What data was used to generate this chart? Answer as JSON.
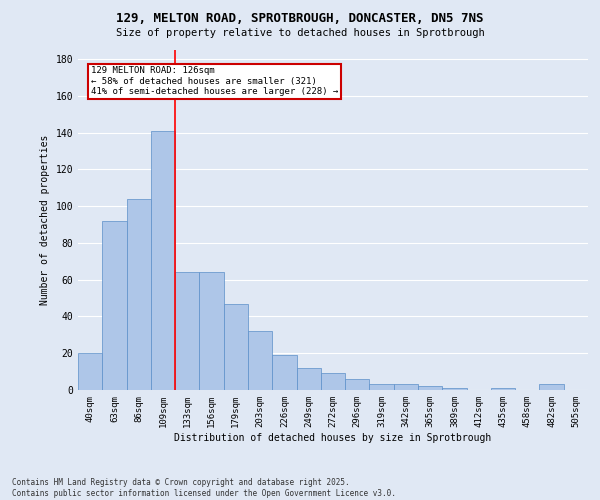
{
  "title_line1": "129, MELTON ROAD, SPROTBROUGH, DONCASTER, DN5 7NS",
  "title_line2": "Size of property relative to detached houses in Sprotbrough",
  "xlabel": "Distribution of detached houses by size in Sprotbrough",
  "ylabel": "Number of detached properties",
  "categories": [
    "40sqm",
    "63sqm",
    "86sqm",
    "109sqm",
    "133sqm",
    "156sqm",
    "179sqm",
    "203sqm",
    "226sqm",
    "249sqm",
    "272sqm",
    "296sqm",
    "319sqm",
    "342sqm",
    "365sqm",
    "389sqm",
    "412sqm",
    "435sqm",
    "458sqm",
    "482sqm",
    "505sqm"
  ],
  "values": [
    20,
    92,
    104,
    141,
    64,
    64,
    47,
    32,
    19,
    12,
    9,
    6,
    3,
    3,
    2,
    1,
    0,
    1,
    0,
    3,
    0
  ],
  "bar_color": "#aec6e8",
  "bar_edge_color": "#5b8fc9",
  "bg_color": "#e0e8f4",
  "grid_color": "#ffffff",
  "redline_x": 3.5,
  "annotation_text": "129 MELTON ROAD: 126sqm\n← 58% of detached houses are smaller (321)\n41% of semi-detached houses are larger (228) →",
  "annotation_box_color": "#ffffff",
  "annotation_box_edge": "#cc0000",
  "ylim": [
    0,
    185
  ],
  "yticks": [
    0,
    20,
    40,
    60,
    80,
    100,
    120,
    140,
    160,
    180
  ],
  "footer_line1": "Contains HM Land Registry data © Crown copyright and database right 2025.",
  "footer_line2": "Contains public sector information licensed under the Open Government Licence v3.0."
}
